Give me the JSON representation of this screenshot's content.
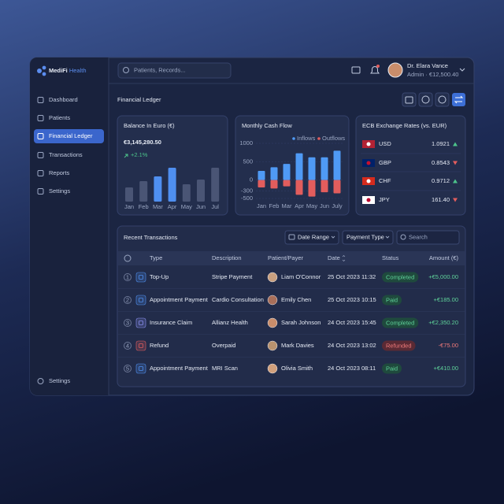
{
  "brand": {
    "name": "MediFi",
    "accent": "Health"
  },
  "search_placeholder": "Patients, Records...",
  "user": {
    "name": "Dr. Elara Vance",
    "role": "Admin · €12,500.40"
  },
  "nav": [
    "Dashboard",
    "Patients",
    "Financial Ledger",
    "Transactions",
    "Reports",
    "Settings"
  ],
  "nav_active": 2,
  "nav_bottom": "Settings",
  "page_title": "Financial Ledger",
  "balance_summary": {
    "amount": "€3,145,280.50",
    "change": "+2.1%"
  },
  "chart_data": [
    {
      "type": "bar",
      "title": "Balance In Euro (€)",
      "categories": [
        "Jan",
        "Feb",
        "Mar",
        "Apr",
        "May",
        "Jun",
        "Jul"
      ],
      "values": [
        18,
        26,
        32,
        43,
        22,
        28,
        43
      ],
      "colors": [
        "#4a5575",
        "#4a5575",
        "#4f8ff0",
        "#4f8ff0",
        "#4a5575",
        "#4a5575",
        "#4a5575"
      ]
    },
    {
      "type": "grouped-bar",
      "title": "Monthly Cash Flow",
      "categories": [
        "Jan",
        "Feb",
        "Mar",
        "Apr",
        "May",
        "Jun",
        "July"
      ],
      "series": [
        {
          "name": "Inflows",
          "color": "#4f9af5",
          "values": [
            250,
            350,
            440,
            730,
            620,
            620,
            800
          ]
        },
        {
          "name": "Outflows",
          "color": "#e25d5d",
          "values": [
            -200,
            -230,
            -170,
            -400,
            -450,
            -330,
            -360
          ]
        }
      ],
      "ylim": [
        -500,
        1000
      ],
      "yticks": [
        1000,
        500,
        0,
        -300,
        -500
      ],
      "legend": "top-right"
    }
  ],
  "exchange_rates": {
    "title": "ECB Exchange Rates (vs. EUR)",
    "rows": [
      {
        "currency": "USD",
        "rate": "1.0921",
        "trend": "up"
      },
      {
        "currency": "GBP",
        "rate": "0.8543",
        "trend": "down"
      },
      {
        "currency": "CHF",
        "rate": "0.9712",
        "trend": "up"
      },
      {
        "currency": "JPY",
        "rate": "161.40",
        "trend": "down"
      }
    ]
  },
  "transactions": {
    "title": "Recent Transactions",
    "filters": [
      "Date Range",
      "Payment Type"
    ],
    "search": "Search",
    "columns": [
      "Type",
      "Description",
      "Patient/Payer",
      "Date",
      "Status",
      "Amount (€)"
    ],
    "rows": [
      [
        "1",
        "Top-Up",
        "Stripe Payment",
        "Liam O'Connor",
        "25 Oct 2023 11:32",
        "Completed",
        "+€5,000.00"
      ],
      [
        "2",
        "Appointment Payment",
        "Cardio Consultation",
        "Emily Chen",
        "25 Oct 2023 10:15",
        "Paid",
        "+€185.00"
      ],
      [
        "3",
        "Insurance Claim",
        "Allianz Health",
        "Sarah Johnson",
        "24 Oct 2023 15:45",
        "Completed",
        "+€2,350.20"
      ],
      [
        "4",
        "Refund",
        "Overpaid",
        "Mark Davies",
        "24 Oct 2023 13:02",
        "Refunded",
        "-€75.00"
      ],
      [
        "5",
        "Appointment Payment",
        "MRI Scan",
        "Olivia Smith",
        "24 Oct 2023 08:11",
        "Paid",
        "+€410.00"
      ]
    ]
  }
}
